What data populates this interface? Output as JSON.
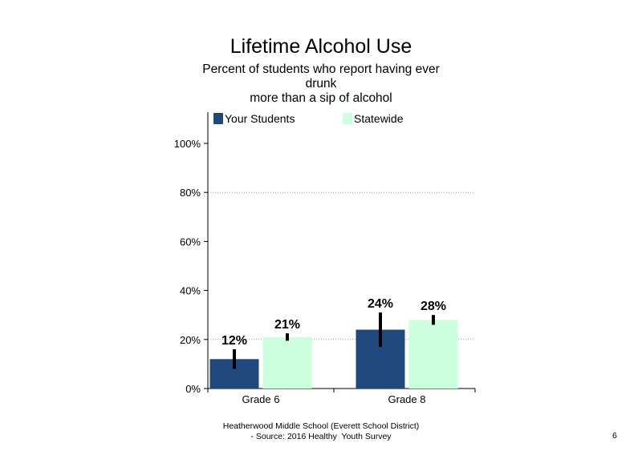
{
  "title": "Lifetime Alcohol Use",
  "subtitle_lines": [
    "Percent of students who report having ever",
    "drunk",
    "more than a sip of alcohol"
  ],
  "footer": {
    "line1": "Heatherwood Middle School (Everett School District)",
    "line2": "- Source: 2016 Healthy  Youth Survey"
  },
  "page_number": "6",
  "colors": {
    "your_students": "#1f497d",
    "statewide": "#ccffdd",
    "grid": "#999999",
    "error_bar": "#000000"
  },
  "chart_data": {
    "type": "bar",
    "categories": [
      "Grade 6",
      "Grade 8"
    ],
    "series": [
      {
        "name": "Your Students",
        "values": [
          12,
          24
        ],
        "labels": [
          "12%",
          "24%"
        ],
        "error_low": [
          8,
          17
        ],
        "error_high": [
          16,
          31
        ]
      },
      {
        "name": "Statewide",
        "values": [
          21,
          28
        ],
        "labels": [
          "21%",
          "28%"
        ],
        "error_low": [
          19.5,
          26
        ],
        "error_high": [
          22.5,
          30
        ]
      }
    ],
    "ylim": [
      0,
      100
    ],
    "yticks": [
      0,
      20,
      40,
      60,
      80,
      100
    ],
    "ytick_labels": [
      "0%",
      "20%",
      "40%",
      "60%",
      "80%",
      "100%"
    ],
    "grid": "dotted at 20% and 80%",
    "legend": "top",
    "xlabel": "",
    "ylabel": ""
  }
}
